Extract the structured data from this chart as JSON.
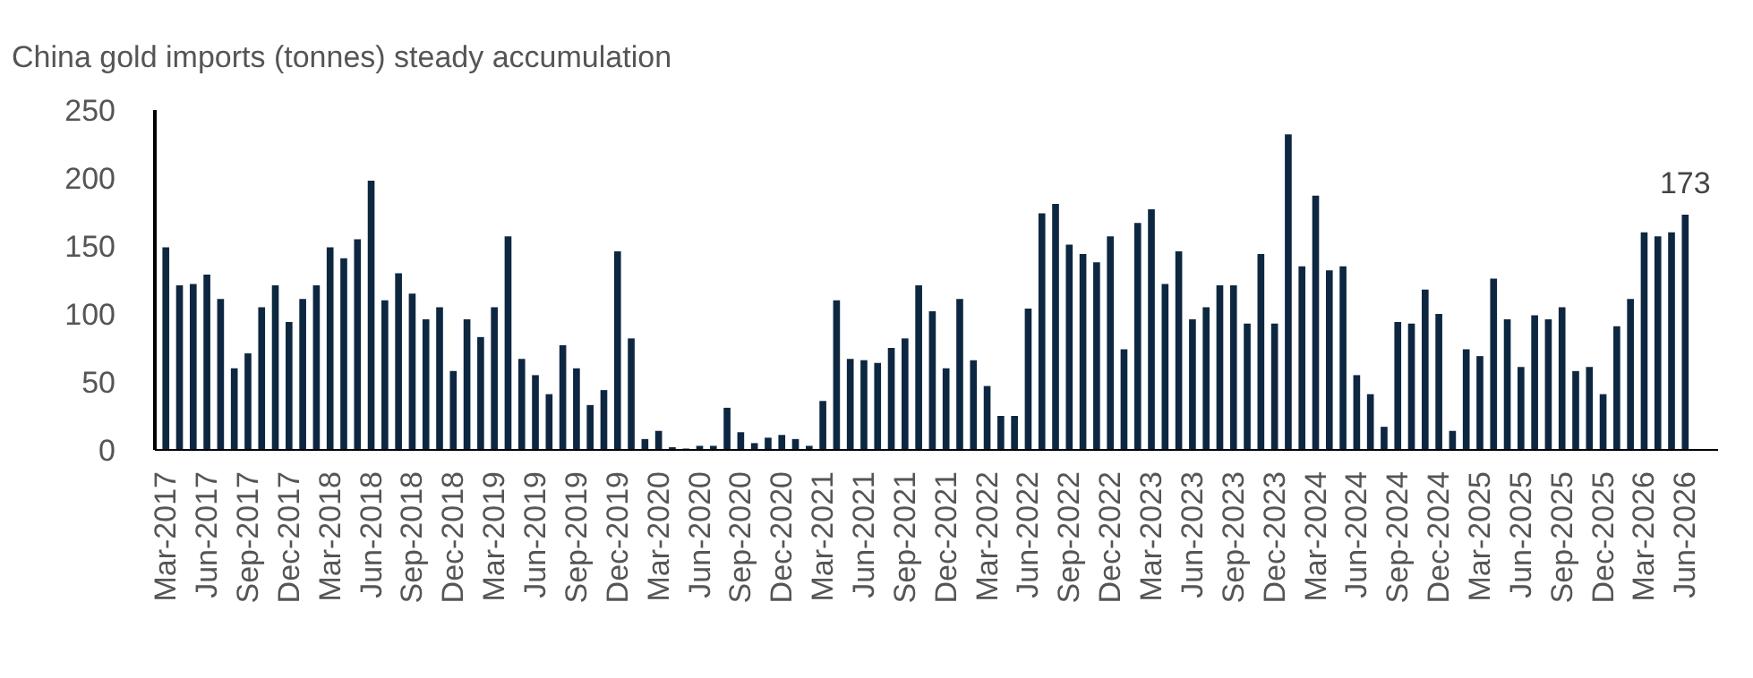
{
  "chart_data": {
    "type": "bar",
    "title": "China gold imports (tonnes) steady accumulation",
    "categories": [
      "Mar-2017",
      null,
      null,
      "Jun-2017",
      null,
      null,
      "Sep-2017",
      null,
      null,
      "Dec-2017",
      null,
      null,
      "Mar-2018",
      null,
      null,
      "Jun-2018",
      null,
      null,
      "Sep-2018",
      null,
      null,
      "Dec-2018",
      null,
      null,
      "Mar-2019",
      null,
      null,
      "Jun-2019",
      null,
      null,
      "Sep-2019",
      null,
      null,
      "Dec-2019",
      null,
      null,
      "Mar-2020",
      null,
      null,
      "Jun-2020",
      null,
      null,
      "Sep-2020",
      null,
      null,
      "Dec-2020",
      null,
      null,
      "Mar-2021",
      null,
      null,
      "Jun-2021",
      null,
      null,
      "Sep-2021",
      null,
      null,
      "Dec-2021",
      null,
      null,
      "Mar-2022",
      null,
      null,
      "Jun-2022",
      null,
      null,
      "Sep-2022",
      null,
      null,
      "Dec-2022",
      null,
      null,
      "Mar-2023",
      null,
      null,
      "Jun-2023",
      null,
      null,
      "Sep-2023",
      null,
      null,
      "Dec-2023",
      null,
      null,
      "Mar-2024",
      null,
      null,
      "Jun-2024",
      null,
      null,
      "Sep-2024",
      null,
      null,
      "Dec-2024",
      null,
      null,
      "Mar-2025",
      null,
      null,
      "Jun-2025",
      null,
      null,
      "Sep-2025",
      null,
      null,
      "Dec-2025",
      null,
      null,
      "Mar-2026",
      null,
      null,
      "Jun-2026"
    ],
    "values": [
      149,
      121,
      122,
      129,
      111,
      60,
      71,
      105,
      121,
      94,
      111,
      121,
      149,
      141,
      155,
      198,
      110,
      130,
      115,
      96,
      105,
      58,
      96,
      83,
      105,
      157,
      67,
      55,
      41,
      77,
      60,
      33,
      44,
      146,
      82,
      8,
      14,
      2,
      1,
      3,
      3,
      31,
      13,
      5,
      9,
      11,
      8,
      3,
      36,
      110,
      67,
      66,
      64,
      75,
      82,
      121,
      102,
      60,
      111,
      66,
      47,
      25,
      25,
      104,
      174,
      181,
      151,
      144,
      138,
      157,
      74,
      167,
      177,
      122,
      146,
      96,
      105,
      121,
      121,
      93,
      144,
      93,
      232,
      135,
      187,
      132,
      135,
      55,
      41,
      17,
      94,
      93,
      118,
      100,
      14,
      74,
      69,
      126,
      96,
      61,
      99,
      96,
      105,
      58,
      61,
      41,
      91,
      111,
      160,
      157,
      160,
      173
    ],
    "value_labels": [
      null,
      null,
      null,
      null,
      null,
      null,
      null,
      null,
      null,
      null,
      null,
      null,
      null,
      null,
      null,
      null,
      null,
      null,
      null,
      null,
      null,
      null,
      null,
      null,
      null,
      null,
      null,
      null,
      null,
      null,
      null,
      null,
      null,
      null,
      null,
      null,
      null,
      null,
      null,
      null,
      null,
      null,
      null,
      null,
      null,
      null,
      null,
      null,
      null,
      null,
      null,
      null,
      null,
      null,
      null,
      null,
      null,
      null,
      null,
      null,
      null,
      null,
      null,
      null,
      null,
      null,
      null,
      null,
      null,
      null,
      null,
      null,
      null,
      null,
      null,
      null,
      null,
      null,
      null,
      null,
      null,
      null,
      null,
      null,
      null,
      null,
      null,
      null,
      null,
      null,
      null,
      null,
      null,
      null,
      null,
      null,
      null,
      null,
      null,
      null,
      null,
      null,
      null,
      null,
      null,
      null,
      null,
      null,
      null,
      null,
      null,
      "173"
    ],
    "color": "#0e2741",
    "ylim": [
      0,
      250
    ],
    "yticks": [
      0,
      50,
      100,
      150,
      200,
      250
    ]
  }
}
